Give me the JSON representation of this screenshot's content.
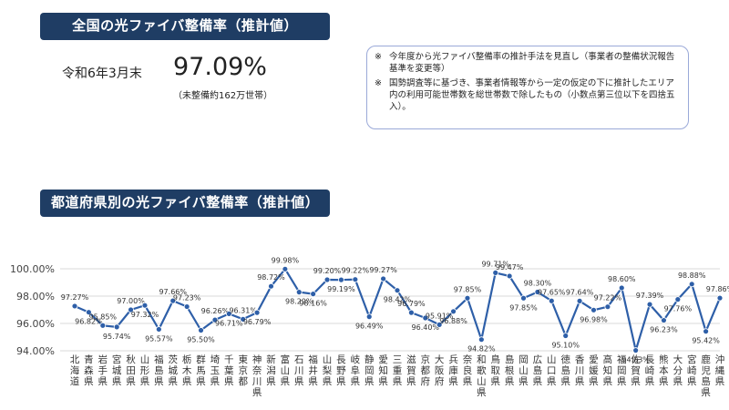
{
  "national": {
    "title": "全国の光ファイバ整備率（推計値）",
    "date": "令和6年3月末",
    "rate": "97.09%",
    "unserved": "（未整備約162万世帯）"
  },
  "notes": [
    {
      "mark": "※",
      "text": "今年度から光ファイバ整備率の推計手法を見直し（事業者の整備状況報告基準を変更等）"
    },
    {
      "mark": "※",
      "text": "国勢調査等に基づき、事業者情報等から一定の仮定の下に推計したエリア内の利用可能世帯数を総世帯数で除したもの（小数点第三位以下を四捨五入）。"
    }
  ],
  "prefecture_section": {
    "title": "都道府県別の光ファイバ整備率（推計値）"
  },
  "colors": {
    "banner": "#1f3d64",
    "line": "#2e5fa8",
    "marker": "#2e5fa8",
    "grid": "#d9d9d9"
  },
  "chart_data": {
    "type": "line",
    "categories": [
      "北海道",
      "青森県",
      "岩手県",
      "宮城県",
      "秋田県",
      "山形県",
      "福島県",
      "茨城県",
      "栃木県",
      "群馬県",
      "埼玉県",
      "千葉県",
      "東京都",
      "神奈川県",
      "新潟県",
      "富山県",
      "石川県",
      "福井県",
      "山梨県",
      "長野県",
      "岐阜県",
      "静岡県",
      "愛知県",
      "三重県",
      "滋賀県",
      "京都府",
      "大阪府",
      "兵庫県",
      "奈良県",
      "和歌山県",
      "鳥取県",
      "島根県",
      "岡山県",
      "広島県",
      "山口県",
      "徳島県",
      "香川県",
      "愛媛県",
      "高知県",
      "福岡県",
      "佐賀県",
      "長崎県",
      "熊本県",
      "大分県",
      "宮崎県",
      "鹿児島県",
      "沖縄県"
    ],
    "values": [
      97.27,
      96.82,
      95.85,
      95.74,
      97.0,
      97.32,
      95.57,
      97.66,
      97.23,
      95.5,
      96.26,
      96.71,
      96.31,
      96.79,
      98.72,
      99.98,
      98.29,
      98.16,
      99.2,
      99.19,
      99.22,
      96.49,
      99.27,
      98.42,
      96.79,
      96.4,
      95.91,
      96.88,
      97.85,
      94.82,
      99.71,
      99.47,
      97.85,
      98.3,
      97.65,
      95.1,
      97.64,
      96.98,
      97.22,
      98.6,
      94.03,
      97.39,
      96.23,
      97.76,
      98.88,
      95.42,
      97.86
    ],
    "data_labels": [
      "97.27%",
      "96.82%",
      "95.85%",
      "95.74%",
      "97.00%",
      "97.32%",
      "95.57%",
      "97.66%",
      "97.23%",
      "95.50%",
      "96.26%",
      "96.71%",
      "96.31%",
      "96.79%",
      "98.72%",
      "99.98%",
      "98.29%",
      "98.16%",
      "99.20%",
      "99.19%",
      "99.22%",
      "96.49%",
      "99.27%",
      "98.42%",
      "96.79%",
      "96.40%",
      "95.91%",
      "96.88%",
      "97.85%",
      "94.82%",
      "99.71%",
      "99.47%",
      "97.85%",
      "98.30%",
      "97.65%",
      "95.10%",
      "97.64%",
      "96.98%",
      "97.22%",
      "98.60%",
      "94.03%",
      "97.39%",
      "96.23%",
      "97.76%",
      "98.88%",
      "95.42%",
      "97.86%"
    ],
    "label_above": [
      true,
      false,
      true,
      false,
      true,
      false,
      false,
      true,
      true,
      false,
      true,
      false,
      true,
      false,
      true,
      true,
      false,
      false,
      true,
      false,
      true,
      false,
      true,
      false,
      true,
      false,
      true,
      false,
      true,
      false,
      true,
      true,
      false,
      true,
      true,
      false,
      true,
      false,
      true,
      true,
      false,
      true,
      false,
      false,
      true,
      false,
      true
    ],
    "y_ticks": [
      "94.00%",
      "96.00%",
      "98.00%",
      "100.00%"
    ],
    "y_tick_values": [
      94,
      96,
      98,
      100
    ],
    "ylim": [
      94,
      100
    ],
    "grid": true
  }
}
